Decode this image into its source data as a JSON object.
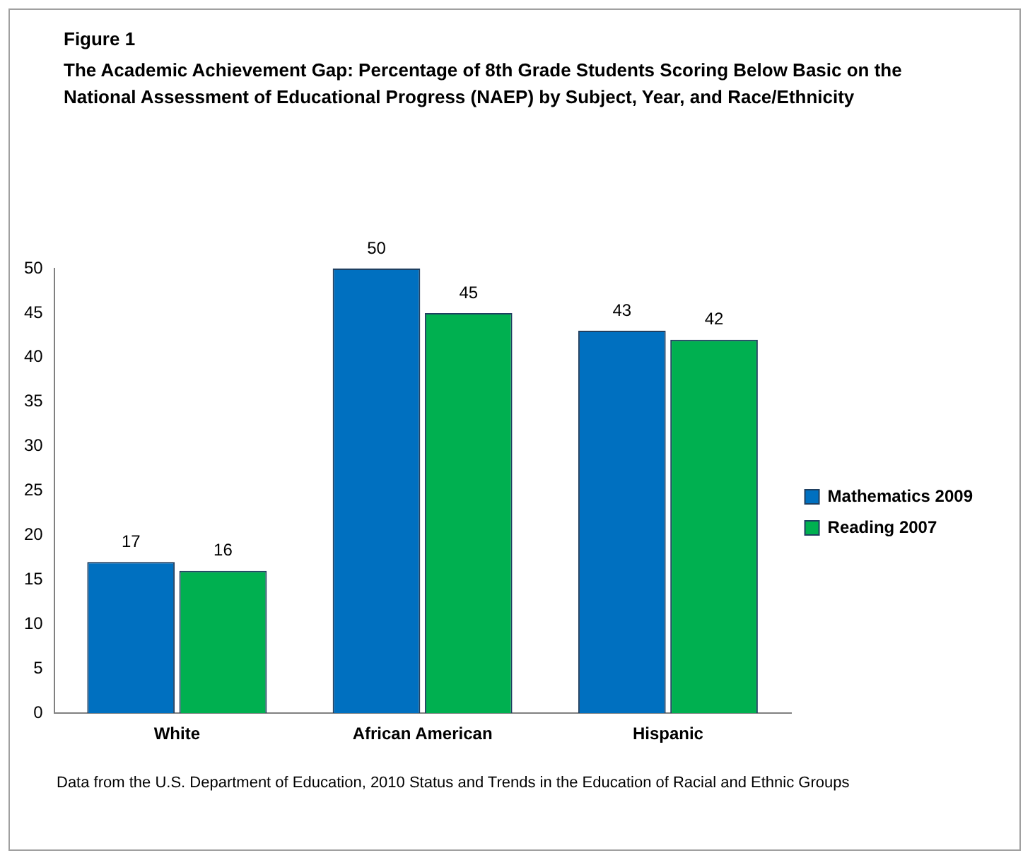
{
  "chart_data": {
    "type": "bar",
    "title": "Figure 1",
    "subtitle": "The Academic Achievement Gap: Percentage of 8th Grade Students Scoring Below Basic on the National Assessment of Educational Progress (NAEP) by Subject, Year, and Race/Ethnicity",
    "categories": [
      "White",
      "African American",
      "Hispanic"
    ],
    "series": [
      {
        "name": "Mathematics 2009",
        "color": "#0070c0",
        "values": [
          17,
          50,
          43
        ]
      },
      {
        "name": "Reading 2007",
        "color": "#00b050",
        "values": [
          16,
          45,
          42
        ]
      }
    ],
    "ylim": [
      0,
      50
    ],
    "yticks": [
      0,
      5,
      10,
      15,
      20,
      25,
      30,
      35,
      40,
      45,
      50
    ],
    "grid": false,
    "legend": "right",
    "data_labels": true,
    "annotations": [
      "Data from the  U.S. Department of Education, 2010 Status and Trends in the Education of Racial and Ethnic Groups"
    ]
  }
}
